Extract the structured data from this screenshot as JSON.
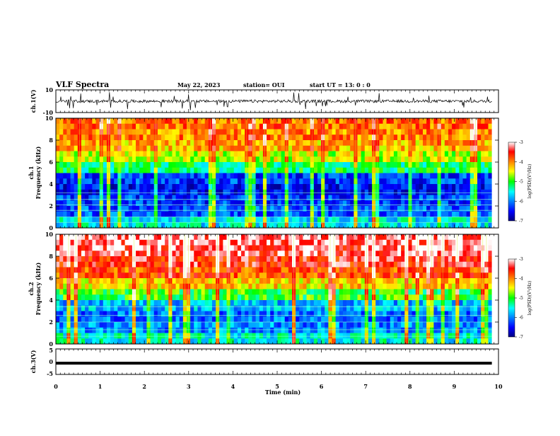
{
  "header": {
    "title": "VLF Spectra",
    "date": "May 22, 2023",
    "station": "station= OUI",
    "start": "start  UT  =   13: 0   : 0"
  },
  "chart_data": [
    {
      "type": "line",
      "panel": "ch1-voltage",
      "ylabel": "ch.1(V)",
      "ylim": [
        -10,
        10
      ],
      "y_ticks": [
        "10",
        "-10"
      ],
      "series": [
        {
          "description_only": true,
          "values": []
        }
      ],
      "baseline_approx": 0,
      "xlim": [
        0,
        10
      ]
    },
    {
      "type": "heatmap",
      "panel": "ch1-spectrogram",
      "ylabel": "ch.1",
      "ylabel2": "Frequency (kHz)",
      "ylim": [
        0,
        10
      ],
      "y_ticks": [
        "0",
        "2",
        "4",
        "6",
        "8",
        "10"
      ],
      "xlim": [
        0,
        10
      ],
      "data_end_min": 9.85,
      "colorbar": {
        "label": "log(PSD)(V²/Hz)",
        "range": [
          -7,
          -3
        ],
        "ticks": [
          "-3",
          "-4",
          "-5",
          "-6",
          "-7"
        ]
      },
      "band_profile_logPSD": [
        {
          "f": 0.5,
          "v": -5.6
        },
        {
          "f": 1.5,
          "v": -6.2
        },
        {
          "f": 2.5,
          "v": -6.3
        },
        {
          "f": 3.5,
          "v": -6.5
        },
        {
          "f": 4.5,
          "v": -6.3
        },
        {
          "f": 5.5,
          "v": -5.2
        },
        {
          "f": 6.5,
          "v": -4.6
        },
        {
          "f": 7.5,
          "v": -4.2
        },
        {
          "f": 8.5,
          "v": -4.0
        },
        {
          "f": 9.5,
          "v": -3.9
        }
      ],
      "tone_lines_kHz": [
        0.5,
        1.0,
        1.6,
        2.1,
        2.6,
        3.2
      ]
    },
    {
      "type": "heatmap",
      "panel": "ch2-spectrogram",
      "ylabel": "ch.2",
      "ylabel2": "Frequency (kHz)",
      "ylim": [
        0,
        10
      ],
      "y_ticks": [
        "0",
        "2",
        "4",
        "6",
        "8",
        "10"
      ],
      "xlim": [
        0,
        10
      ],
      "data_end_min": 9.85,
      "colorbar": {
        "label": "log(PSD)(V²/Hz)",
        "range": [
          -7,
          -3
        ],
        "ticks": [
          "-3",
          "-4",
          "-5",
          "-6",
          "-7"
        ]
      },
      "band_profile_logPSD": [
        {
          "f": 0.5,
          "v": -5.5
        },
        {
          "f": 1.5,
          "v": -6.0
        },
        {
          "f": 2.5,
          "v": -6.1
        },
        {
          "f": 3.5,
          "v": -5.8
        },
        {
          "f": 4.5,
          "v": -5.0
        },
        {
          "f": 5.5,
          "v": -4.3
        },
        {
          "f": 6.5,
          "v": -3.8
        },
        {
          "f": 7.5,
          "v": -3.5
        },
        {
          "f": 8.5,
          "v": -3.3
        },
        {
          "f": 9.5,
          "v": -3.2
        }
      ],
      "tone_lines_kHz": [
        0.7,
        1.3,
        2.0,
        2.6,
        3.4
      ]
    },
    {
      "type": "line",
      "panel": "ch3-voltage",
      "ylabel": "ch.3(V)",
      "ylim": [
        -5,
        5
      ],
      "y_ticks": [
        "5",
        "0",
        "-5"
      ],
      "series": [
        {
          "values": [
            [
              0,
              -0.6
            ],
            [
              9.85,
              -0.6
            ]
          ]
        }
      ],
      "xlim": [
        0,
        10
      ],
      "xlabel": "Time (min)",
      "x_ticks": [
        "0",
        "1",
        "2",
        "3",
        "4",
        "5",
        "6",
        "7",
        "8",
        "9",
        "10"
      ]
    }
  ]
}
